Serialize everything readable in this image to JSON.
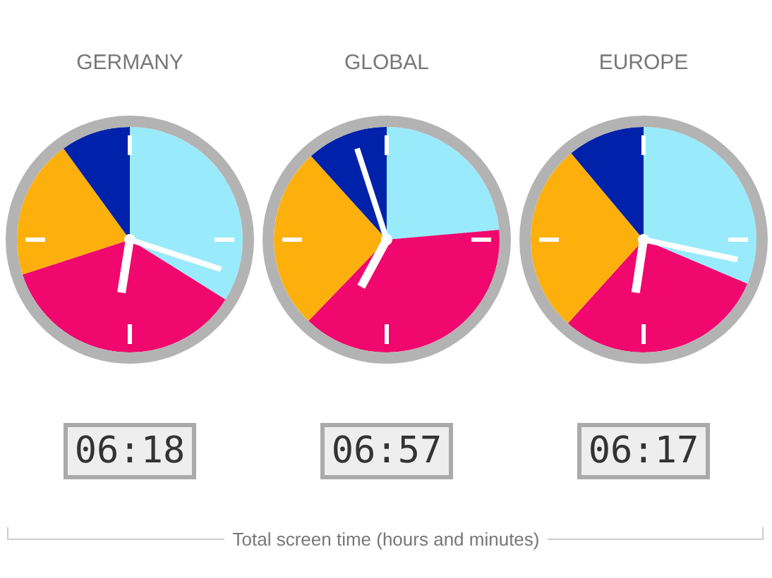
{
  "chart_data": [
    {
      "type": "pie",
      "title": "GERMANY",
      "categories": [
        null,
        null,
        null,
        null
      ],
      "values": [
        33.9,
        36.1,
        20.0,
        10.0
      ],
      "colors": [
        "#99ebfb",
        "#f0086e",
        "#fdb00b",
        "#0022aa"
      ],
      "annotations": [
        "06:18"
      ]
    },
    {
      "type": "pie",
      "title": "GLOBAL",
      "categories": [
        null,
        null,
        null,
        null
      ],
      "values": [
        23.6,
        38.6,
        26.1,
        11.7
      ],
      "colors": [
        "#99ebfb",
        "#f0086e",
        "#fdb00b",
        "#0022aa"
      ],
      "annotations": [
        "06:57",
        "Total screen time (hours and minutes)"
      ]
    },
    {
      "type": "pie",
      "title": "EUROPE",
      "categories": [
        null,
        null,
        null,
        null
      ],
      "values": [
        31.4,
        30.3,
        27.2,
        11.1
      ],
      "colors": [
        "#99ebfb",
        "#f0086e",
        "#fdb00b",
        "#0022aa"
      ],
      "annotations": [
        "06:17"
      ]
    }
  ]
}
